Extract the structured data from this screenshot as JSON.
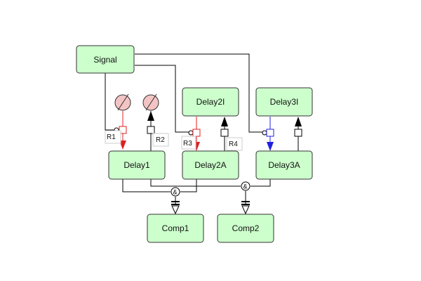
{
  "blocks": {
    "signal": "Signal",
    "delay2i": "Delay2I",
    "delay3i": "Delay3I",
    "delay1": "Delay1",
    "delay2a": "Delay2A",
    "delay3a": "Delay3A",
    "comp1": "Comp1",
    "comp2": "Comp2"
  },
  "resources": {
    "r1": "R1",
    "r2": "R2",
    "r3": "R3",
    "r4": "R4"
  },
  "gates": {
    "and1": "&",
    "and2": "&"
  },
  "colors": {
    "block_fill": "#ccffcc",
    "gauge_fill": "#f4c4c4",
    "red_wire": "#e02020",
    "blue_wire": "#2020e0"
  }
}
